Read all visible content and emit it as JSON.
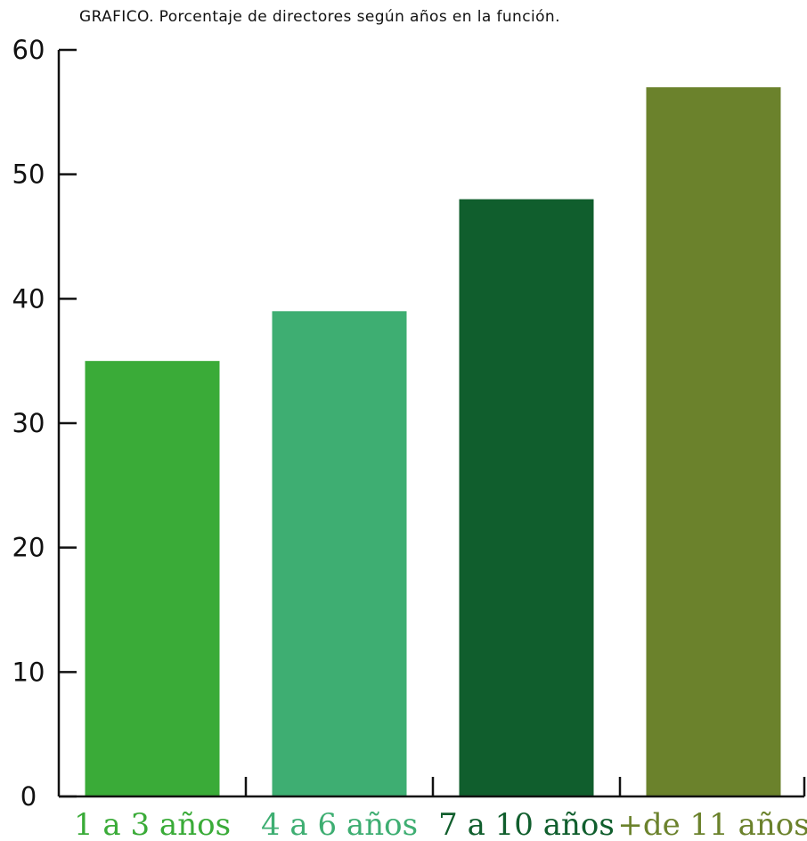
{
  "chart_data": {
    "type": "bar",
    "title": "GRAFICO. Porcentaje de directores según años en la función.",
    "xlabel": "",
    "ylabel": "",
    "categories": [
      "1 a 3 años",
      "4 a 6 años",
      "7 a 10 años",
      "+de 11 años"
    ],
    "values": [
      35,
      39,
      48,
      57
    ],
    "colors": [
      "#3aab38",
      "#3eae72",
      "#105e2d",
      "#6b822c"
    ],
    "ylim": [
      0,
      60
    ],
    "yticks": [
      "0",
      "10",
      "20",
      "30",
      "40",
      "50",
      "60"
    ],
    "grid": false,
    "legend": "none"
  }
}
